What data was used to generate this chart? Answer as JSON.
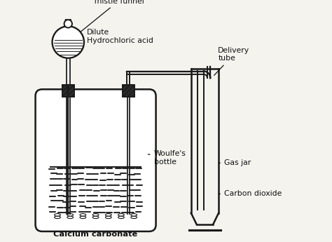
{
  "bg_color": "#f5f3ee",
  "line_color": "#1a1a1a",
  "labels": {
    "thistle_funnel": "Thistle funnel",
    "dilute_hcl": "Dilute\nHydrochloric acid",
    "delivery_tube": "Delivery\ntube",
    "woulfes_bottle": "Woulfe's\nbottle",
    "gas_jar": "Gas jar",
    "carbon_dioxide": "Carbon dioxide",
    "calcium_carbonate": "Calcium carbonate"
  },
  "figsize": [
    4.74,
    3.45
  ],
  "dpi": 100
}
